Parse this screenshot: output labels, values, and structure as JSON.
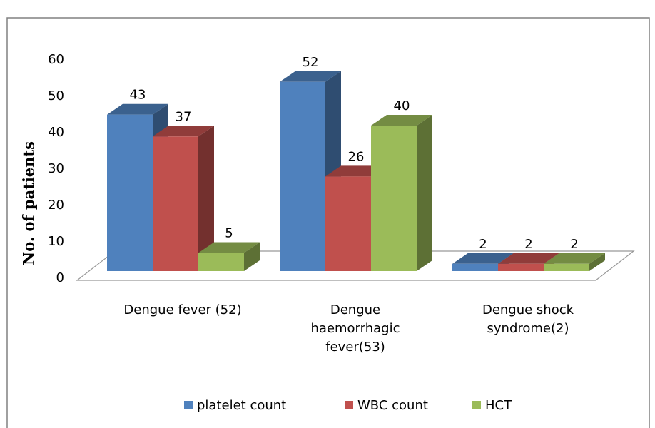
{
  "chart_data": {
    "type": "bar3d",
    "y_axis_label": "No. of patients",
    "categories": [
      "Dengue fever (52)",
      "Dengue haemorrhagic fever(53)",
      "Dengue shock syndrome(2)"
    ],
    "series": [
      {
        "name": "platelet count",
        "color": "#4f81bd",
        "values": [
          43,
          52,
          2
        ]
      },
      {
        "name": "WBC count",
        "color": "#c0504d",
        "values": [
          37,
          26,
          2
        ]
      },
      {
        "name": "HCT",
        "color": "#9bbb59",
        "values": [
          5,
          40,
          2
        ]
      }
    ],
    "ylim": [
      0,
      60
    ],
    "yticks": [
      0,
      10,
      20,
      30,
      40,
      50,
      60
    ],
    "grid": false,
    "legend": "bottom"
  }
}
